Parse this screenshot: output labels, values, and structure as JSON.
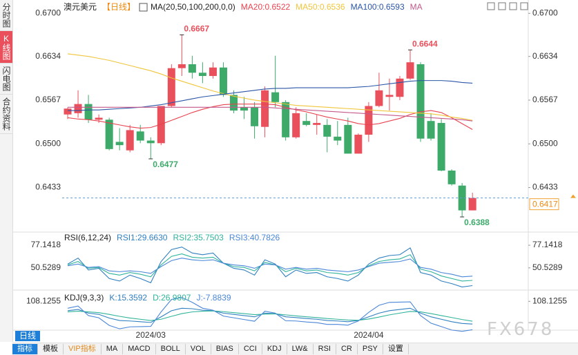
{
  "sidebar": [
    "分时图",
    "K线图",
    "闪电图",
    "合约资料"
  ],
  "header": {
    "symbol": "澳元美元",
    "period": "【日线】"
  },
  "period_button": "日线",
  "watermark": "FX678",
  "toolbar": [
    "指标",
    "模板",
    "VIP指标",
    "MA",
    "MACD",
    "BOLL",
    "VOL",
    "BIAS",
    "CCI",
    "KDJ",
    "LW&",
    "RSI",
    "CR",
    "PSY",
    "设置"
  ],
  "chart_data": [
    {
      "type": "candlestick",
      "title": "MA(20,50,100,200,0,0)",
      "categories": [
        null,
        null,
        null,
        null,
        null,
        null,
        null,
        null,
        "2024/03",
        null,
        null,
        null,
        null,
        null,
        null,
        null,
        null,
        null,
        null,
        null,
        null,
        null,
        null,
        null,
        null,
        null,
        null,
        null,
        null,
        "2024/04",
        null,
        null,
        null,
        null,
        null,
        null,
        null,
        null,
        null,
        null
      ],
      "open": [
        0.6545,
        0.6547,
        0.6561,
        0.6537,
        0.6537,
        0.6503,
        0.649,
        0.6519,
        0.6505,
        0.6501,
        0.6558,
        0.6616,
        0.6622,
        0.6609,
        0.6604,
        0.6617,
        0.6575,
        0.6556,
        0.6556,
        0.6526,
        0.6579,
        0.6564,
        0.651,
        0.6535,
        0.6529,
        0.6529,
        0.6511,
        0.6529,
        0.6485,
        0.6514,
        0.6558,
        0.6572,
        0.6572,
        0.66,
        0.6622,
        0.6535,
        0.6532,
        0.6459,
        0.6436,
        0.6398
      ],
      "high": [
        0.6556,
        0.6582,
        0.6575,
        0.6545,
        0.654,
        0.6524,
        0.6529,
        0.6529,
        0.651,
        0.6558,
        0.6622,
        0.6667,
        0.6635,
        0.6625,
        0.6625,
        0.6625,
        0.6582,
        0.6572,
        0.6564,
        0.6588,
        0.6635,
        0.6567,
        0.6556,
        0.6547,
        0.6545,
        0.6538,
        0.6535,
        0.654,
        0.6516,
        0.6564,
        0.6609,
        0.66,
        0.6604,
        0.6644,
        0.6625,
        0.6547,
        0.6538,
        0.6461,
        0.644,
        0.6425
      ],
      "low": [
        0.6538,
        0.654,
        0.6532,
        0.6532,
        0.649,
        0.649,
        0.6487,
        0.6501,
        0.6477,
        0.6498,
        0.6556,
        0.6604,
        0.66,
        0.6593,
        0.66,
        0.6572,
        0.6547,
        0.6538,
        0.6508,
        0.651,
        0.6556,
        0.6505,
        0.6508,
        0.6527,
        0.6514,
        0.6487,
        0.6498,
        0.6485,
        0.6485,
        0.6503,
        0.6556,
        0.6551,
        0.6567,
        0.6598,
        0.6503,
        0.6505,
        0.6458,
        0.6436,
        0.6388,
        0.6398
      ],
      "close": [
        0.6554,
        0.6561,
        0.6537,
        0.654,
        0.6492,
        0.6498,
        0.6521,
        0.6505,
        0.6501,
        0.6558,
        0.6616,
        0.6622,
        0.6609,
        0.6604,
        0.6617,
        0.6575,
        0.6551,
        0.6551,
        0.6527,
        0.6582,
        0.6564,
        0.651,
        0.6547,
        0.6529,
        0.6532,
        0.6511,
        0.6505,
        0.6485,
        0.6514,
        0.6558,
        0.6582,
        0.6575,
        0.66,
        0.6625,
        0.6508,
        0.6508,
        0.6459,
        0.6438,
        0.6398,
        0.6417
      ],
      "up_color": "#e9505c",
      "down_color": "#3daa6a",
      "ylim": [
        0.6369,
        0.6712
      ],
      "yticks": [
        {
          "value": 0.67,
          "label": "0.6700"
        },
        0.6634,
        0.6567,
        {
          "value": 0.65,
          "label": "0.6500"
        },
        0.6433
      ],
      "extreme_labels": [
        0.6667,
        0.6477,
        0.6644,
        0.6388
      ],
      "last_price_line": true,
      "series": [
        {
          "name": "MA20:0.6522",
          "color": "#e8424f",
          "values": [
            0.654,
            0.6538,
            0.6537,
            0.6535,
            0.6532,
            0.6529,
            0.6526,
            0.6524,
            0.6525,
            0.653,
            0.6536,
            0.6542,
            0.6548,
            0.6553,
            0.6557,
            0.656,
            0.6561,
            0.6561,
            0.6561,
            0.6561,
            0.656,
            0.6556,
            0.6552,
            0.6549,
            0.6545,
            0.6541,
            0.6538,
            0.6535,
            0.6531,
            0.6529,
            0.6531,
            0.6535,
            0.6539,
            0.6545,
            0.6549,
            0.6551,
            0.6548,
            0.654,
            0.6531,
            0.6522
          ]
        },
        {
          "name": "MA50:0.6536",
          "color": "#f0c53a",
          "values": [
            0.6638,
            0.6636,
            0.6634,
            0.6631,
            0.6628,
            0.6624,
            0.662,
            0.6616,
            0.6612,
            0.6607,
            0.6601,
            0.6596,
            0.6591,
            0.6586,
            0.6581,
            0.6577,
            0.6573,
            0.657,
            0.6567,
            0.6565,
            0.6563,
            0.6561,
            0.6559,
            0.6558,
            0.6557,
            0.6556,
            0.6555,
            0.6554,
            0.6553,
            0.6552,
            0.6551,
            0.655,
            0.6549,
            0.6548,
            0.6547,
            0.6546,
            0.6544,
            0.6541,
            0.6539,
            0.6536
          ]
        },
        {
          "name": "MA100:0.6593",
          "color": "#2a55a5",
          "values": [
            0.6551,
            0.6551,
            0.6552,
            0.6552,
            0.6553,
            0.6554,
            0.6555,
            0.6556,
            0.6558,
            0.656,
            0.6563,
            0.6566,
            0.6569,
            0.6572,
            0.6574,
            0.6576,
            0.6578,
            0.658,
            0.6582,
            0.6584,
            0.6585,
            0.6585,
            0.6586,
            0.6586,
            0.6586,
            0.6586,
            0.6586,
            0.6586,
            0.6587,
            0.6588,
            0.659,
            0.6592,
            0.6594,
            0.6596,
            0.6597,
            0.6597,
            0.6597,
            0.6596,
            0.6594,
            0.6593
          ]
        },
        {
          "name": "MA",
          "color": "#c4578a",
          "values": [
            0.6556,
            0.6556,
            0.6556,
            0.6556,
            0.6556,
            0.6556,
            0.6556,
            0.6556,
            0.6556,
            0.6556,
            0.6556,
            0.6556,
            0.6556,
            0.6556,
            0.6556,
            0.6556,
            0.6556,
            0.6556,
            0.6556,
            0.6556,
            0.6555,
            0.6554,
            0.6553,
            0.6552,
            0.6551,
            0.655,
            0.6549,
            0.6548,
            0.6547,
            0.6546,
            0.6545,
            0.6544,
            0.6543,
            0.6542,
            0.6541,
            0.654,
            0.6539,
            0.6538,
            0.6537,
            0.6535
          ]
        }
      ]
    },
    {
      "type": "line",
      "title": "RSI(6,12,24)",
      "ylim": [
        26,
        91
      ],
      "yticks": [
        77.1418,
        50.5289
      ],
      "series": [
        {
          "name": "RSI1:29.6630",
          "color": "#2f7fc0",
          "values": [
            55,
            62,
            48,
            50,
            38,
            35,
            42,
            38,
            33,
            58,
            72,
            75,
            68,
            66,
            68,
            56,
            50,
            48,
            42,
            60,
            55,
            40,
            48,
            44,
            45,
            40,
            38,
            35,
            42,
            55,
            62,
            65,
            66,
            74,
            45,
            42,
            35,
            32,
            28,
            29.663
          ]
        },
        {
          "name": "RSI2:35.7503",
          "color": "#2fb39a",
          "values": [
            54,
            58,
            50,
            51,
            44,
            42,
            45,
            43,
            40,
            54,
            64,
            67,
            63,
            62,
            63,
            56,
            52,
            51,
            47,
            57,
            54,
            46,
            50,
            47,
            48,
            45,
            44,
            42,
            45,
            53,
            58,
            60,
            61,
            66,
            49,
            46,
            41,
            38,
            35,
            35.7503
          ]
        },
        {
          "name": "RSI3:40.7826",
          "color": "#4a86d8",
          "values": [
            53,
            55,
            51,
            52,
            47,
            46,
            47,
            46,
            44,
            52,
            59,
            62,
            60,
            59,
            60,
            56,
            54,
            53,
            50,
            55,
            54,
            49,
            51,
            49,
            50,
            48,
            47,
            46,
            48,
            52,
            56,
            57,
            58,
            61,
            51,
            49,
            45,
            43,
            40,
            40.7826
          ]
        }
      ]
    },
    {
      "type": "line",
      "title": "KDJ(9,3,3)",
      "ylim": [
        -15,
        140
      ],
      "yticks": [
        108.1255
      ],
      "series": [
        {
          "name": "K:15.3592",
          "color": "#2f7fc0",
          "values": [
            70,
            75,
            60,
            55,
            40,
            30,
            28,
            25,
            22,
            45,
            70,
            80,
            78,
            72,
            70,
            60,
            55,
            50,
            45,
            60,
            58,
            45,
            42,
            38,
            35,
            30,
            28,
            25,
            30,
            45,
            60,
            70,
            75,
            80,
            60,
            45,
            35,
            25,
            18,
            15.3592
          ]
        },
        {
          "name": "D:26.9807",
          "color": "#2fb39a",
          "values": [
            65,
            68,
            65,
            62,
            55,
            47,
            40,
            35,
            30,
            35,
            47,
            58,
            65,
            68,
            69,
            66,
            62,
            58,
            54,
            56,
            57,
            53,
            49,
            45,
            42,
            38,
            35,
            32,
            31,
            36,
            44,
            53,
            60,
            67,
            65,
            58,
            50,
            42,
            34,
            26.9807
          ]
        },
        {
          "name": "J:-7.8839",
          "color": "#4a86d8",
          "values": [
            80,
            89,
            50,
            41,
            10,
            -4,
            4,
            5,
            6,
            65,
            116,
            124,
            104,
            80,
            72,
            48,
            41,
            34,
            27,
            68,
            60,
            29,
            28,
            24,
            21,
            14,
            14,
            11,
            28,
            63,
            92,
            104,
            105,
            106,
            50,
            19,
            5,
            -9,
            -14,
            -7.8839
          ]
        }
      ]
    }
  ]
}
